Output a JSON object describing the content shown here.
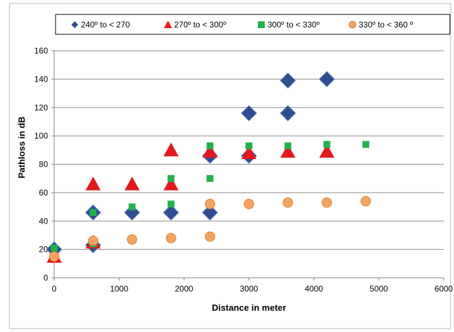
{
  "chart_data": {
    "type": "scatter",
    "xlabel": "Distance in meter",
    "ylabel": "Pathloss in dB",
    "xlim": [
      0,
      6000
    ],
    "ylim": [
      0,
      160
    ],
    "xticks": [
      "0",
      "1000",
      "2000",
      "3000",
      "4000",
      "5000",
      "6000"
    ],
    "yticks": [
      "0",
      "20",
      "40",
      "60",
      "80",
      "100",
      "120",
      "140",
      "160"
    ],
    "grid": "horizontal",
    "legend_position": "top",
    "series": [
      {
        "name": "240º  to < 270",
        "marker": "diamond",
        "color": "#2E4E8F",
        "points": [
          [
            0,
            20
          ],
          [
            600,
            46
          ],
          [
            600,
            23
          ],
          [
            1200,
            46
          ],
          [
            1800,
            46
          ],
          [
            2400,
            46
          ],
          [
            2400,
            86
          ],
          [
            3000,
            86
          ],
          [
            3000,
            116
          ],
          [
            3600,
            116
          ],
          [
            3600,
            139
          ],
          [
            4200,
            140
          ]
        ]
      },
      {
        "name": "270º  to < 300º",
        "marker": "triangle",
        "color": "#E31A1C",
        "points": [
          [
            0,
            15
          ],
          [
            600,
            66
          ],
          [
            600,
            25
          ],
          [
            1200,
            66
          ],
          [
            1800,
            66
          ],
          [
            1800,
            90
          ],
          [
            2400,
            89
          ],
          [
            3000,
            88
          ],
          [
            3600,
            89
          ],
          [
            4200,
            89
          ]
        ]
      },
      {
        "name": "300º  to < 330º",
        "marker": "square",
        "color": "#22B14C",
        "points": [
          [
            0,
            21
          ],
          [
            600,
            46
          ],
          [
            600,
            24
          ],
          [
            1200,
            50
          ],
          [
            1800,
            52
          ],
          [
            1800,
            70
          ],
          [
            2400,
            70
          ],
          [
            2400,
            93
          ],
          [
            3000,
            93
          ],
          [
            3600,
            93
          ],
          [
            4200,
            94
          ],
          [
            4800,
            94
          ]
        ]
      },
      {
        "name": "330º  to < 360 º",
        "marker": "circle",
        "color": "#F4A460",
        "points": [
          [
            0,
            15
          ],
          [
            600,
            26
          ],
          [
            1200,
            27
          ],
          [
            1800,
            28
          ],
          [
            2400,
            29
          ],
          [
            2400,
            52
          ],
          [
            3000,
            52
          ],
          [
            3600,
            53
          ],
          [
            4200,
            53
          ],
          [
            4800,
            54
          ]
        ]
      }
    ]
  }
}
